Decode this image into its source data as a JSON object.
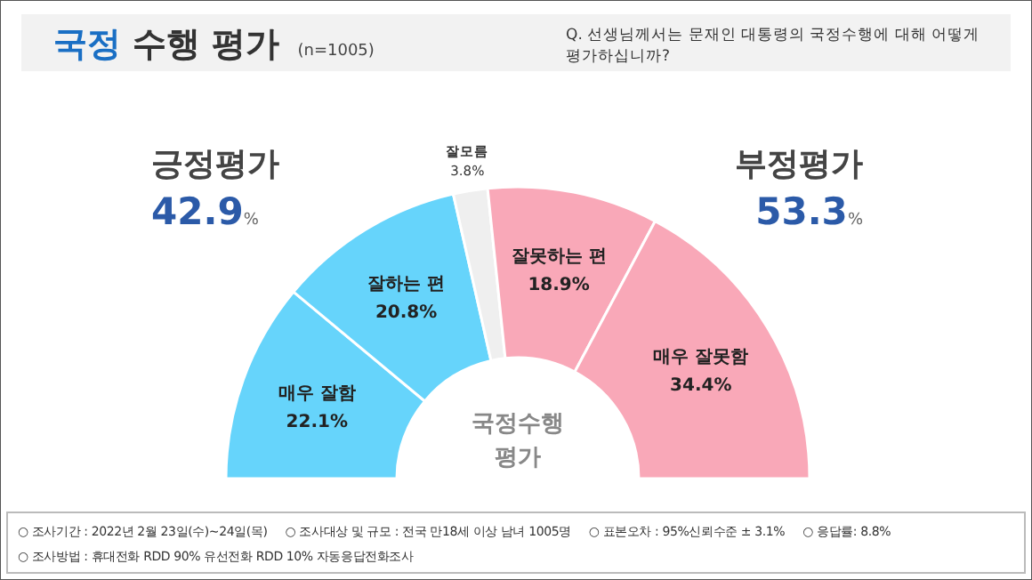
{
  "chart_data": {
    "type": "donut",
    "title": "국정 수행 평가",
    "subtitle": "(n=1005)",
    "categories": [
      "매우 잘함",
      "잘하는 편",
      "잘모름",
      "잘못하는 편",
      "매우 잘못함"
    ],
    "values": [
      22.1,
      20.8,
      3.8,
      18.9,
      34.4
    ],
    "value_labels": [
      "22.1%",
      "20.8%",
      "3.8%",
      "18.9%",
      "34.4%"
    ],
    "colors": [
      "#66d4fb",
      "#66d4fb",
      "#efefef",
      "#f9a8b8",
      "#f9a8b8"
    ],
    "annotations": [
      "Q. 선생님께서는 문재인 대통령의 국정수행에 대해 어떻게 평가하십니까?",
      "긍정평가",
      "42.9%",
      "부정평가",
      "53.3%",
      "국정수행 평가",
      "○ 조사기간 : 2022년 2월 23일(수)~24일(목)",
      "○ 조사대상 및 규모 : 전국 만18세 이상 남녀 1005명",
      "○ 표본오차 : 95%신뢰수준 ± 3.1%",
      "○ 응답률: 8.8%",
      "○ 조사방법 : 휴대전화 RDD 90% 유선전화 RDD 10% 자동응답전화조사"
    ]
  }
}
